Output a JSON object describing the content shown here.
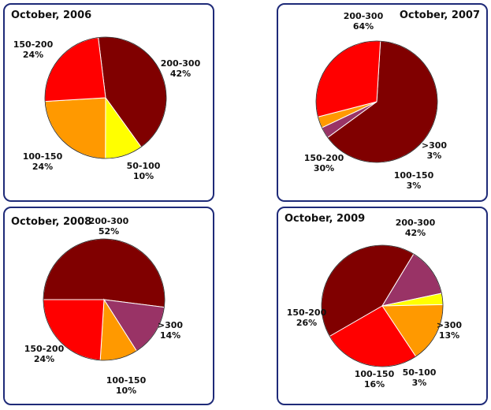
{
  "chart_data": [
    {
      "type": "pie",
      "title": "October, 2006",
      "slices": [
        {
          "label": "200-300",
          "value": 42,
          "value_label": "42%",
          "color": "#800000"
        },
        {
          "label": "50-100",
          "value": 10,
          "value_label": "10%",
          "color": "#ffff00"
        },
        {
          "label": "100-150",
          "value": 24,
          "value_label": "24%",
          "color": "#ff9900"
        },
        {
          "label": "150-200",
          "value": 24,
          "value_label": "24%",
          "color": "#ff0000"
        }
      ]
    },
    {
      "type": "pie",
      "title": "October, 2007",
      "slices": [
        {
          "label": "200-300",
          "value": 64,
          "value_label": "64%",
          "color": "#800000"
        },
        {
          "label": ">300",
          "value": 3,
          "value_label": "3%",
          "color": "#993366"
        },
        {
          "label": "100-150",
          "value": 3,
          "value_label": "3%",
          "color": "#ff9900"
        },
        {
          "label": "150-200",
          "value": 30,
          "value_label": "30%",
          "color": "#ff0000"
        }
      ]
    },
    {
      "type": "pie",
      "title": "October, 2008",
      "slices": [
        {
          "label": "200-300",
          "value": 52,
          "value_label": "52%",
          "color": "#800000"
        },
        {
          "label": ">300",
          "value": 14,
          "value_label": "14%",
          "color": "#993366"
        },
        {
          "label": "100-150",
          "value": 10,
          "value_label": "10%",
          "color": "#ff9900"
        },
        {
          "label": "150-200",
          "value": 24,
          "value_label": "24%",
          "color": "#ff0000"
        }
      ]
    },
    {
      "type": "pie",
      "title": "October, 2009",
      "slices": [
        {
          "label": "200-300",
          "value": 42,
          "value_label": "42%",
          "color": "#800000"
        },
        {
          "label": ">300",
          "value": 13,
          "value_label": "13%",
          "color": "#993366"
        },
        {
          "label": "50-100",
          "value": 3,
          "value_label": "3%",
          "color": "#ffff00"
        },
        {
          "label": "100-150",
          "value": 16,
          "value_label": "16%",
          "color": "#ff9900"
        },
        {
          "label": "150-200",
          "value": 26,
          "value_label": "26%",
          "color": "#ff0000"
        }
      ]
    }
  ]
}
